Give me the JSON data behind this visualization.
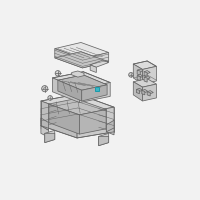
{
  "bg_color": "#f2f2f2",
  "line_color": "#666666",
  "fill_light": "#e8e8e8",
  "fill_mid": "#d4d4d4",
  "fill_dark": "#c0c0c0",
  "fill_darker": "#aaaaaa",
  "highlight_color": "#3ab5c5",
  "lw": 0.55,
  "lw_thin": 0.35
}
